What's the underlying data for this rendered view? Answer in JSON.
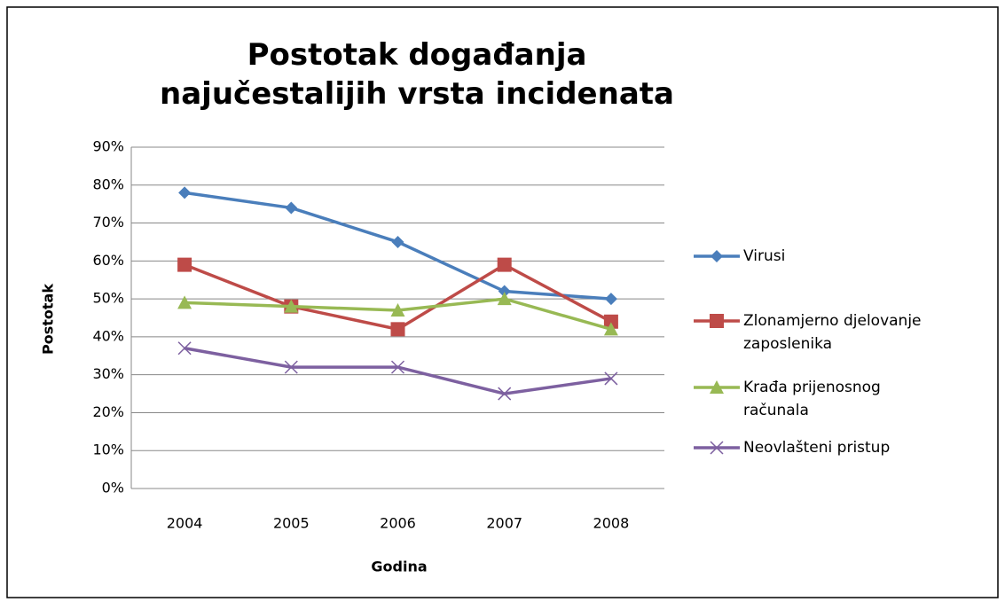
{
  "chart_data": {
    "type": "line",
    "title": "Postotak  događanja najučestalijih vrsta incidenata",
    "xlabel": "Godina",
    "ylabel": "Postotak",
    "categories": [
      "2004",
      "2005",
      "2006",
      "2007",
      "2008"
    ],
    "series": [
      {
        "name": "Virusi",
        "color": "#4a7ebb",
        "marker": "diamond",
        "values": [
          78,
          74,
          65,
          52,
          50
        ]
      },
      {
        "name": "Zlonamjerno djelovanje zaposlenika",
        "color": "#be4b48",
        "marker": "square",
        "values": [
          59,
          48,
          42,
          59,
          44
        ]
      },
      {
        "name": "Krađa prijenosnog računala",
        "color": "#98b954",
        "marker": "triangle",
        "values": [
          49,
          48,
          47,
          50,
          42
        ]
      },
      {
        "name": "Neovlašteni pristup",
        "color": "#7d60a0",
        "marker": "x",
        "values": [
          37,
          32,
          32,
          25,
          29
        ]
      }
    ],
    "ylim": [
      0,
      90
    ],
    "yticks": [
      {
        "value": 0,
        "label": "0%"
      },
      {
        "value": 10,
        "label": "10%"
      },
      {
        "value": 20,
        "label": "20%"
      },
      {
        "value": 30,
        "label": "30%"
      },
      {
        "value": 40,
        "label": "40%"
      },
      {
        "value": 50,
        "label": "50%"
      },
      {
        "value": 60,
        "label": "60%"
      },
      {
        "value": 70,
        "label": "70%"
      },
      {
        "value": 80,
        "label": "80%"
      },
      {
        "value": 90,
        "label": "90%"
      }
    ],
    "grid": true,
    "legend": "right"
  }
}
